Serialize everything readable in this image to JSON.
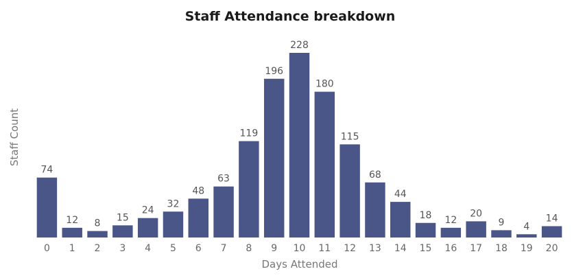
{
  "chart_data": {
    "type": "bar",
    "title": "Staff Attendance breakdown",
    "xlabel": "Days Attended",
    "ylabel": "Staff Count",
    "categories": [
      "0",
      "1",
      "2",
      "3",
      "4",
      "5",
      "6",
      "7",
      "8",
      "9",
      "10",
      "11",
      "12",
      "13",
      "14",
      "15",
      "16",
      "17",
      "18",
      "19",
      "20"
    ],
    "values": [
      74,
      12,
      8,
      15,
      24,
      32,
      48,
      63,
      119,
      196,
      228,
      180,
      115,
      68,
      44,
      18,
      12,
      20,
      9,
      4,
      14
    ],
    "ylim": [
      0,
      228
    ],
    "grid": false,
    "bar_color": "#4a5688"
  }
}
